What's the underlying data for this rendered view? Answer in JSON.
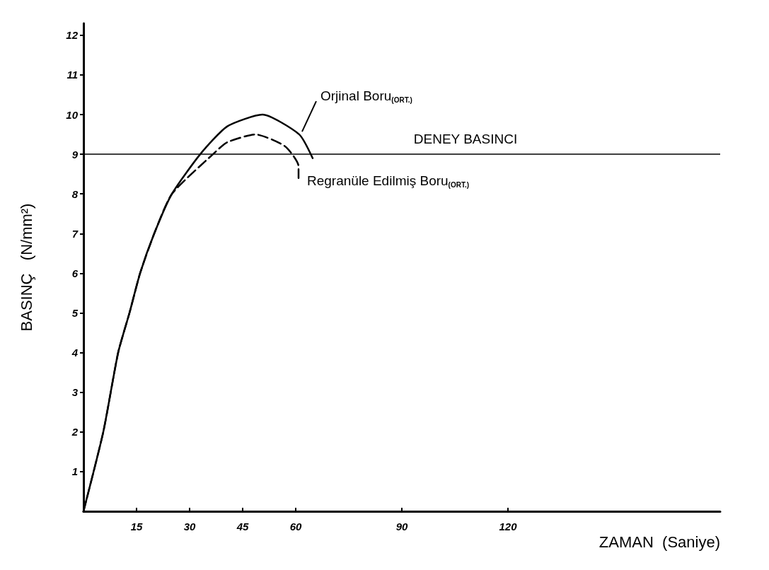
{
  "chart_data": {
    "type": "line",
    "xlabel": "ZAMAN  (Saniye)",
    "ylabel": "BASINÇ   (N/mm²)",
    "xlim": [
      0,
      180
    ],
    "xticks": [
      15,
      30,
      45,
      60,
      90,
      120
    ],
    "ylim": [
      0,
      12.3
    ],
    "yticks": [
      1,
      2,
      3,
      4,
      5,
      6,
      7,
      8,
      9,
      10,
      11,
      12
    ],
    "grid": false,
    "legend": false,
    "marker": "none",
    "series": [
      {
        "name": "Orjinal Boru$_{(ORT.)}$",
        "color": "#000000",
        "line_style": "solid",
        "x": [
          0,
          5.6,
          9.8,
          13,
          16,
          20,
          25,
          33,
          40.6,
          50.6,
          61,
          64.8
        ],
        "values": [
          0,
          2,
          4,
          5,
          6,
          7,
          8,
          9,
          9.7,
          10,
          9.5,
          8.9
        ]
      },
      {
        "name": "Regranüle Edilmiş Boru$_{(ORT.)}$",
        "color": "#000000",
        "line_style": "dashed",
        "x": [
          0,
          5.6,
          9.8,
          13,
          16,
          20,
          25,
          36.6,
          40.6,
          48.6,
          57,
          60.8,
          60.8
        ],
        "values": [
          0,
          2,
          4,
          5,
          6,
          7,
          8,
          9,
          9.3,
          9.5,
          9.2,
          8.7,
          8.4
        ]
      }
    ],
    "ref_lines": [
      {
        "axis": "y",
        "value": 9,
        "label": "DENEY BASINCI",
        "color": "#000000"
      }
    ]
  }
}
